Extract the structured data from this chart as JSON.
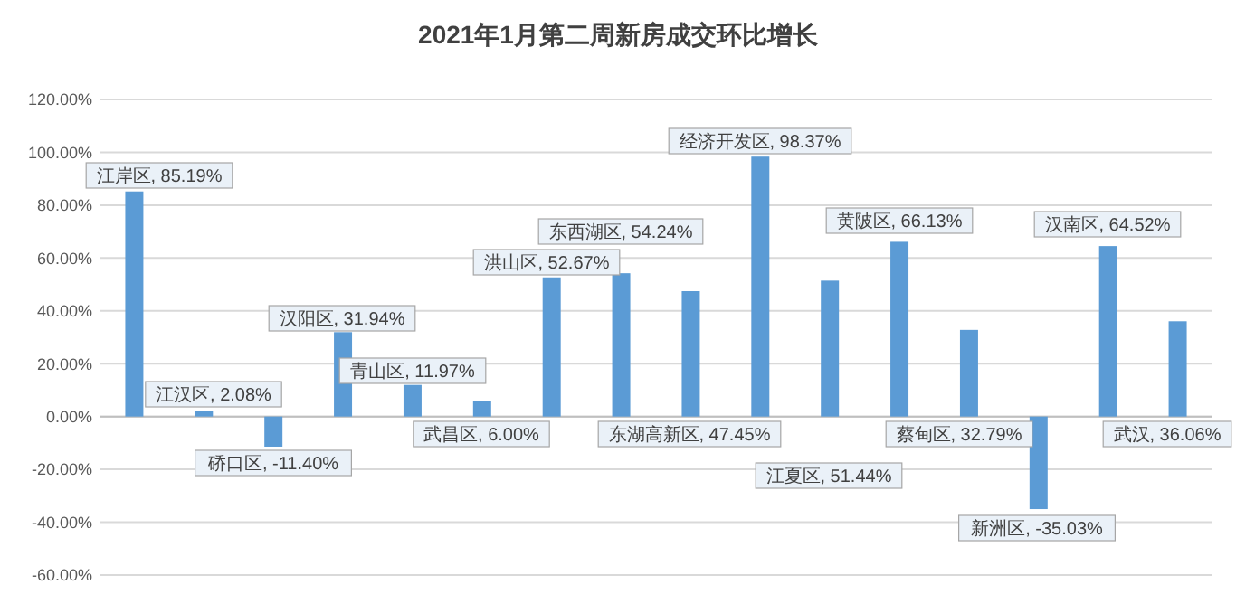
{
  "chart_data": {
    "type": "bar",
    "title": "2021年1月第二周新房成交环比增长",
    "categories": [
      null,
      null,
      null,
      null,
      null,
      null,
      null,
      null,
      null,
      null,
      null,
      null,
      null,
      null,
      null,
      null
    ],
    "values": [
      85.19,
      2.08,
      -11.4,
      31.94,
      11.97,
      6.0,
      52.67,
      54.24,
      47.45,
      98.37,
      51.44,
      66.13,
      32.79,
      -35.03,
      64.52,
      36.06
    ],
    "value_labels": [
      "江岸区, 85.19%",
      "江汉区, 2.08%",
      "硚口区, -11.40%",
      "汉阳区, 31.94%",
      "青山区, 11.97%",
      "武昌区, 6.00%",
      "洪山区, 52.67%",
      "东西湖区, 54.24%",
      "东湖高新区, 47.45%",
      "经济开发区, 98.37%",
      "江夏区, 51.44%",
      "黄陂区, 66.13%",
      "蔡甸区, 32.79%",
      "新洲区, -35.03%",
      "汉南区, 64.52%",
      "武汉, 36.06%"
    ],
    "color": "#5b9bd5",
    "ylim": [
      -60,
      120
    ],
    "yticks": [
      {
        "value": -60,
        "label": "-60.00%"
      },
      {
        "value": -40,
        "label": "-40.00%"
      },
      {
        "value": -20,
        "label": "-20.00%"
      },
      {
        "value": 0,
        "label": "0.00%"
      },
      {
        "value": 20,
        "label": "20.00%"
      },
      {
        "value": 40,
        "label": "40.00%"
      },
      {
        "value": 60,
        "label": "60.00%"
      },
      {
        "value": 80,
        "label": "80.00%"
      },
      {
        "value": 100,
        "label": "100.00%"
      },
      {
        "value": 120,
        "label": "120.00%"
      }
    ],
    "grid": "y"
  }
}
